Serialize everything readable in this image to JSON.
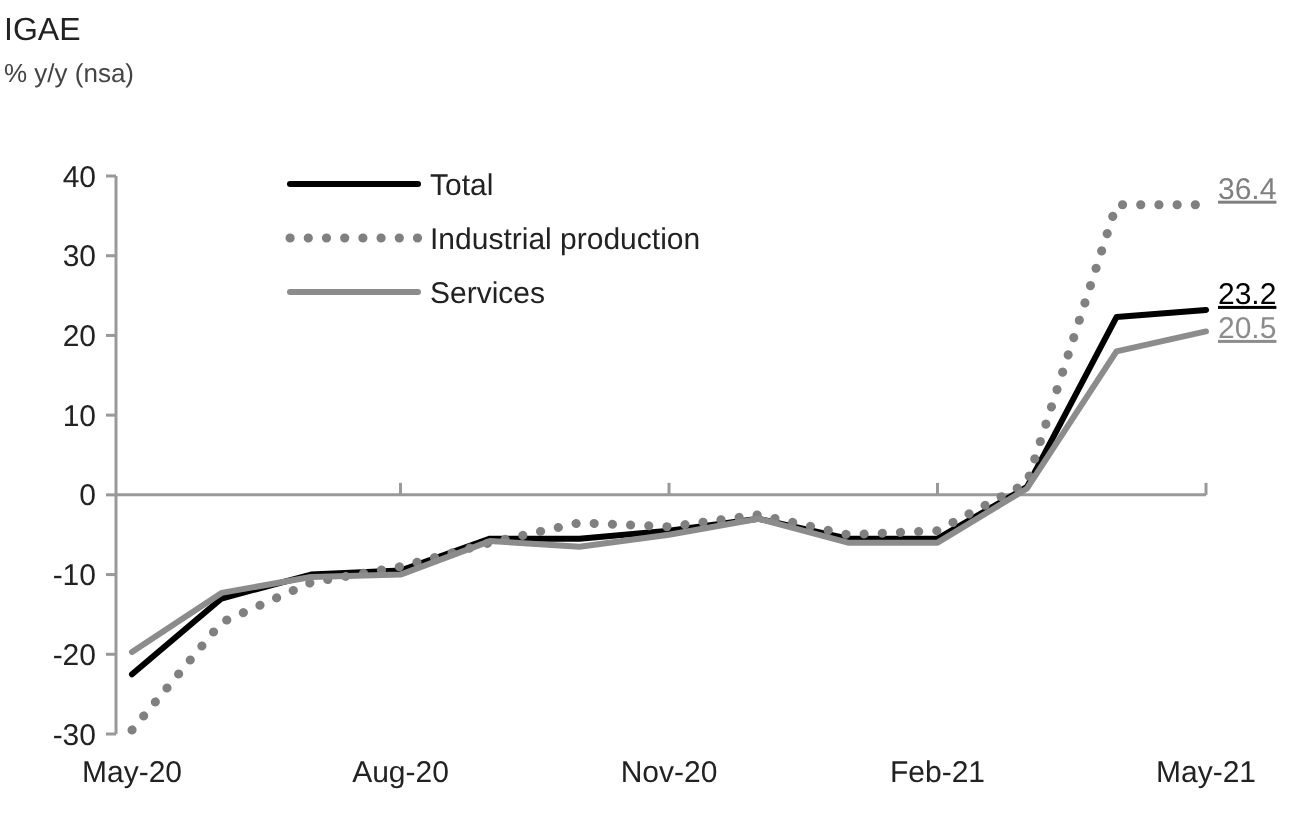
{
  "chart_data": {
    "type": "line",
    "title": "IGAE",
    "subtitle": "% y/y (nsa)",
    "categories": [
      "May-20",
      null,
      null,
      "Aug-20",
      null,
      null,
      "Nov-20",
      null,
      null,
      "Feb-21",
      null,
      null,
      "May-21"
    ],
    "series": [
      {
        "name": "Total",
        "color": "#000000",
        "line_style": "solid",
        "values": [
          -22.5,
          -13,
          -10,
          -9.5,
          -5.5,
          -5.5,
          -4.5,
          -3,
          -5.5,
          -5.5,
          1,
          22.3,
          23.2
        ],
        "value_labels": [
          null,
          null,
          null,
          null,
          null,
          null,
          null,
          null,
          null,
          null,
          null,
          null,
          "23.2"
        ]
      },
      {
        "name": "Industrial production",
        "color": "#808080",
        "line_style": "dotted",
        "values": [
          -29.5,
          -16,
          -11,
          -9,
          -6,
          -3.5,
          -4,
          -2.5,
          -5,
          -4.5,
          1.5,
          36.4,
          36.4
        ],
        "value_labels": [
          null,
          null,
          null,
          null,
          null,
          null,
          null,
          null,
          null,
          null,
          null,
          null,
          "36.4"
        ]
      },
      {
        "name": "Services",
        "color": "#8c8c8c",
        "line_style": "solid",
        "values": [
          -19.7,
          -12.3,
          -10.3,
          -10,
          -5.8,
          -6.5,
          -5,
          -3,
          -6,
          -6,
          0.8,
          18,
          20.5
        ],
        "value_labels": [
          null,
          null,
          null,
          null,
          null,
          null,
          null,
          null,
          null,
          null,
          null,
          null,
          "20.5"
        ]
      }
    ],
    "ylim": [
      -30,
      40
    ],
    "yticks": [
      -30,
      -20,
      -10,
      0,
      10,
      20,
      30,
      40
    ],
    "legend": "top left",
    "marker": "none"
  }
}
